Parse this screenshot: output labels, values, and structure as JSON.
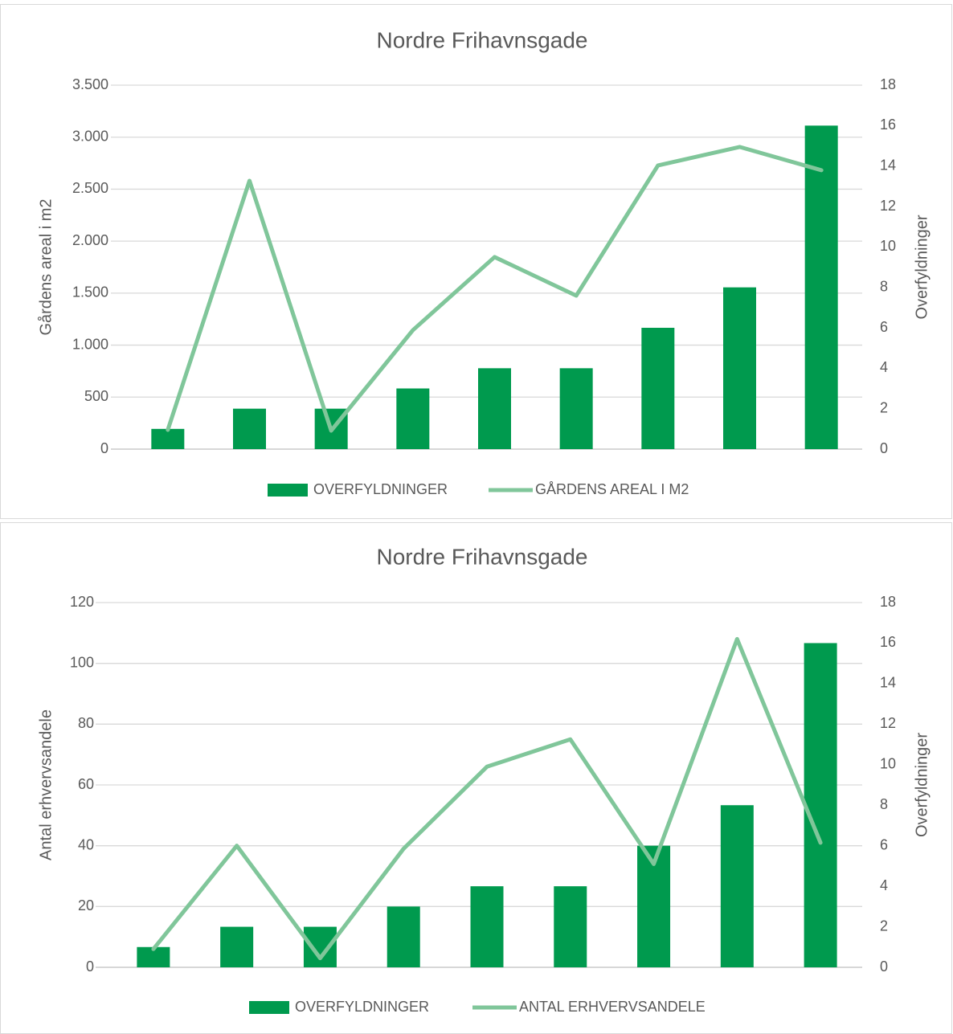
{
  "chart_data": [
    {
      "type": "combo",
      "title": "Nordre Frihavnsgade",
      "ylabel": "Gårdens areal i m2",
      "y2label": "Overfyldninger",
      "categories": [
        null,
        null,
        null,
        null,
        null,
        null,
        null,
        null,
        null
      ],
      "series": [
        {
          "name": "OVERFYLDNINGER",
          "type": "bar",
          "axis": "y2",
          "color": "#009a4e",
          "values": [
            1,
            2,
            2,
            3,
            4,
            4,
            6,
            8,
            16
          ]
        },
        {
          "name": "GÅRDENS AREAL I M2",
          "type": "line",
          "axis": "y",
          "color": "#80c69a",
          "values": [
            185,
            2581,
            178,
            1144,
            1847,
            1476,
            2728,
            2906,
            2682
          ]
        }
      ],
      "ylim": [
        0,
        3500
      ],
      "yticks": [
        0,
        500,
        {
          "value": 1000,
          "label": "1.000"
        },
        {
          "value": 1500,
          "label": "1.500"
        },
        {
          "value": 2000,
          "label": "2.000"
        },
        {
          "value": 2500,
          "label": "2.500"
        },
        {
          "value": 3000,
          "label": "3.000"
        },
        {
          "value": 3500,
          "label": "3.500"
        }
      ],
      "y2lim": [
        0,
        18
      ],
      "y2ticks": [
        0,
        2,
        4,
        6,
        8,
        10,
        12,
        14,
        16,
        18
      ],
      "grid": true,
      "legend": "bottom"
    },
    {
      "type": "combo",
      "title": "Nordre Frihavnsgade",
      "ylabel": "Antal erhvervsandele",
      "y2label": "Overfyldninger",
      "categories": [
        null,
        null,
        null,
        null,
        null,
        null,
        null,
        null,
        null
      ],
      "series": [
        {
          "name": "OVERFYLDNINGER",
          "type": "bar",
          "axis": "y2",
          "color": "#009a4e",
          "values": [
            1,
            2,
            2,
            3,
            4,
            4,
            6,
            8,
            16
          ]
        },
        {
          "name": "ANTAL ERHVERVSANDELE",
          "type": "line",
          "axis": "y",
          "color": "#80c69a",
          "values": [
            6,
            40,
            3,
            39,
            66,
            75,
            34,
            108,
            41
          ]
        }
      ],
      "ylim": [
        0,
        120
      ],
      "yticks": [
        0,
        20,
        40,
        60,
        80,
        100,
        120
      ],
      "y2lim": [
        0,
        18
      ],
      "y2ticks": [
        0,
        2,
        4,
        6,
        8,
        10,
        12,
        14,
        16,
        18
      ],
      "grid": true,
      "legend": "bottom"
    }
  ]
}
